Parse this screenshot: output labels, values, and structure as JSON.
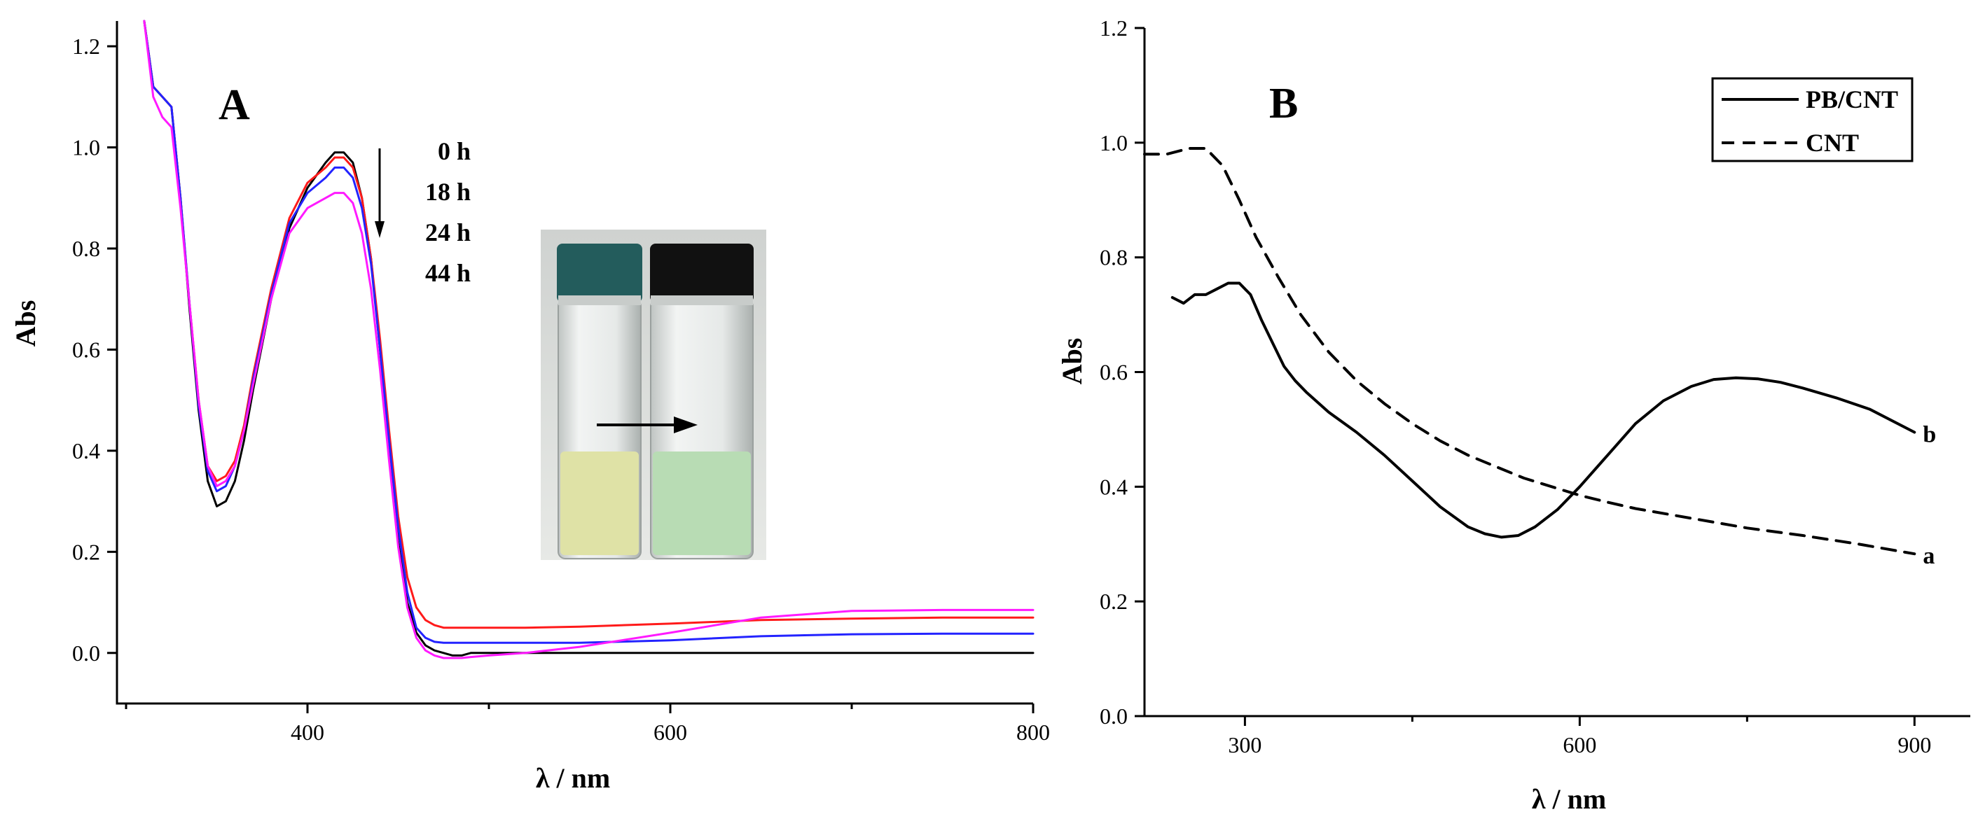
{
  "chart_data": [
    {
      "type": "line",
      "panel": "A",
      "xlabel": "λ / nm",
      "ylabel": "Abs",
      "xlim": [
        300,
        800
      ],
      "ylim": [
        -0.1,
        1.25
      ],
      "xticks": [
        400,
        600,
        800
      ],
      "yticks": [
        0.0,
        0.2,
        0.4,
        0.6,
        0.8,
        1.0,
        1.2
      ],
      "xtick_labels": [
        "400",
        "600",
        "800"
      ],
      "ytick_labels": [
        "0.0",
        "0.2",
        "0.4",
        "0.6",
        "0.8",
        "1.0",
        "1.2"
      ],
      "grid": false,
      "legend": [
        "0 h",
        "18 h",
        "24 h",
        "44 h"
      ],
      "legend_placement": "top-center",
      "series": [
        {
          "name": "0 h",
          "color": "#000000",
          "x": [
            310,
            315,
            320,
            325,
            330,
            335,
            340,
            345,
            350,
            355,
            360,
            365,
            370,
            380,
            390,
            400,
            410,
            415,
            420,
            425,
            430,
            435,
            440,
            445,
            450,
            455,
            460,
            465,
            470,
            475,
            480,
            485,
            490,
            500,
            520,
            550,
            600,
            650,
            700,
            750,
            800
          ],
          "y": [
            1.25,
            1.12,
            1.1,
            1.08,
            0.9,
            0.68,
            0.48,
            0.34,
            0.29,
            0.3,
            0.34,
            0.42,
            0.52,
            0.7,
            0.84,
            0.92,
            0.97,
            0.99,
            0.99,
            0.97,
            0.9,
            0.78,
            0.6,
            0.4,
            0.22,
            0.1,
            0.04,
            0.015,
            0.005,
            0.0,
            -0.005,
            -0.005,
            0.0,
            0.0,
            0.0,
            0.0,
            0.0,
            0.0,
            0.0,
            0.0,
            0.0
          ]
        },
        {
          "name": "18 h",
          "color": "#ff1a1a",
          "x": [
            310,
            315,
            320,
            325,
            330,
            335,
            340,
            345,
            350,
            355,
            360,
            365,
            370,
            380,
            390,
            400,
            410,
            415,
            420,
            425,
            430,
            435,
            440,
            445,
            450,
            455,
            460,
            465,
            470,
            475,
            480,
            485,
            490,
            500,
            520,
            550,
            600,
            650,
            700,
            750,
            800
          ],
          "y": [
            1.25,
            1.12,
            1.1,
            1.08,
            0.9,
            0.69,
            0.5,
            0.37,
            0.34,
            0.35,
            0.38,
            0.45,
            0.55,
            0.72,
            0.86,
            0.93,
            0.96,
            0.98,
            0.98,
            0.96,
            0.9,
            0.78,
            0.62,
            0.44,
            0.27,
            0.15,
            0.09,
            0.065,
            0.055,
            0.05,
            0.05,
            0.05,
            0.05,
            0.05,
            0.05,
            0.052,
            0.058,
            0.065,
            0.068,
            0.07,
            0.07
          ]
        },
        {
          "name": "24 h",
          "color": "#2323ff",
          "x": [
            310,
            315,
            320,
            325,
            330,
            335,
            340,
            345,
            350,
            355,
            360,
            365,
            370,
            380,
            390,
            400,
            410,
            415,
            420,
            425,
            430,
            435,
            440,
            445,
            450,
            455,
            460,
            465,
            470,
            475,
            480,
            485,
            490,
            500,
            520,
            550,
            600,
            650,
            700,
            750,
            800
          ],
          "y": [
            1.25,
            1.12,
            1.1,
            1.08,
            0.9,
            0.69,
            0.49,
            0.36,
            0.32,
            0.33,
            0.37,
            0.44,
            0.54,
            0.71,
            0.85,
            0.91,
            0.94,
            0.96,
            0.96,
            0.94,
            0.88,
            0.77,
            0.6,
            0.42,
            0.25,
            0.12,
            0.05,
            0.03,
            0.022,
            0.02,
            0.02,
            0.02,
            0.02,
            0.02,
            0.02,
            0.02,
            0.025,
            0.033,
            0.037,
            0.038,
            0.038
          ]
        },
        {
          "name": "44 h",
          "color": "#ff1aff",
          "x": [
            310,
            315,
            320,
            325,
            330,
            335,
            340,
            345,
            350,
            355,
            360,
            365,
            370,
            380,
            390,
            400,
            410,
            415,
            420,
            425,
            430,
            435,
            440,
            445,
            450,
            455,
            460,
            465,
            470,
            475,
            480,
            485,
            490,
            500,
            520,
            550,
            600,
            650,
            700,
            750,
            800
          ],
          "y": [
            1.25,
            1.1,
            1.06,
            1.04,
            0.88,
            0.69,
            0.5,
            0.37,
            0.33,
            0.34,
            0.37,
            0.44,
            0.53,
            0.7,
            0.83,
            0.88,
            0.9,
            0.91,
            0.91,
            0.89,
            0.83,
            0.72,
            0.56,
            0.38,
            0.21,
            0.09,
            0.03,
            0.005,
            -0.005,
            -0.01,
            -0.01,
            -0.01,
            -0.008,
            -0.005,
            0.0,
            0.012,
            0.04,
            0.07,
            0.083,
            0.085,
            0.085
          ]
        }
      ],
      "inset_photo_arrow": true
    },
    {
      "type": "line",
      "panel": "B",
      "xlabel": "λ / nm",
      "ylabel": "Abs",
      "xlim": [
        210,
        950
      ],
      "ylim": [
        0.0,
        1.2
      ],
      "xticks": [
        300,
        600,
        900
      ],
      "yticks": [
        0.0,
        0.2,
        0.4,
        0.6,
        0.8,
        1.0,
        1.2
      ],
      "xtick_labels": [
        "300",
        "600",
        "900"
      ],
      "ytick_labels": [
        "0.0",
        "0.2",
        "0.4",
        "0.6",
        "0.8",
        "1.0",
        "1.2"
      ],
      "grid": false,
      "legend_placement": "top-right",
      "series": [
        {
          "name": "PB/CNT",
          "label": "b",
          "style": "solid",
          "x": [
            235,
            245,
            255,
            265,
            275,
            285,
            295,
            305,
            315,
            325,
            335,
            345,
            355,
            375,
            400,
            425,
            450,
            475,
            500,
            515,
            530,
            545,
            560,
            580,
            600,
            625,
            650,
            675,
            700,
            720,
            740,
            760,
            780,
            800,
            830,
            860,
            900
          ],
          "y": [
            0.73,
            0.72,
            0.735,
            0.735,
            0.745,
            0.755,
            0.755,
            0.735,
            0.69,
            0.65,
            0.61,
            0.585,
            0.565,
            0.53,
            0.495,
            0.455,
            0.41,
            0.365,
            0.33,
            0.318,
            0.312,
            0.315,
            0.33,
            0.36,
            0.4,
            0.455,
            0.51,
            0.55,
            0.575,
            0.587,
            0.59,
            0.588,
            0.582,
            0.572,
            0.555,
            0.535,
            0.495
          ]
        },
        {
          "name": "CNT",
          "label": "a",
          "style": "dashed",
          "x": [
            210,
            230,
            250,
            265,
            280,
            295,
            310,
            330,
            350,
            375,
            400,
            425,
            450,
            475,
            500,
            525,
            550,
            575,
            600,
            625,
            650,
            700,
            750,
            800,
            850,
            900
          ],
          "y": [
            0.98,
            0.98,
            0.99,
            0.99,
            0.96,
            0.9,
            0.835,
            0.765,
            0.7,
            0.635,
            0.585,
            0.545,
            0.51,
            0.48,
            0.455,
            0.435,
            0.415,
            0.4,
            0.385,
            0.373,
            0.362,
            0.345,
            0.328,
            0.315,
            0.3,
            0.283
          ]
        }
      ]
    }
  ],
  "panel_a": {
    "letter": "A",
    "xlabel": "λ / nm",
    "ylabel": "Abs",
    "legend": [
      "0 h",
      "18 h",
      "24 h",
      "44 h"
    ]
  },
  "panel_b": {
    "letter": "B",
    "xlabel": "λ / nm",
    "ylabel": "Abs",
    "legend": [
      "PB/CNT",
      "CNT"
    ],
    "curve_labels": [
      "b",
      "a"
    ]
  },
  "inset": {
    "vial_left_cap_color": "#235c5c",
    "vial_right_cap_color": "#111111",
    "liquid_left_color": "#dfe2a6",
    "liquid_right_color": "#b8dcb4"
  }
}
